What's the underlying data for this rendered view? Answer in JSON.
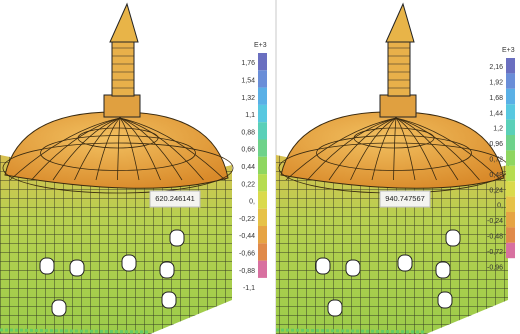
{
  "panels": [
    {
      "legend_unit": "E+3",
      "legend_labels": [
        "1,76",
        "1,54",
        "1,32",
        "1,1",
        "0,88",
        "0,66",
        "0,44",
        "0,22",
        "0,",
        "-0,22",
        "-0,44",
        "-0,66",
        "-0,88",
        "-1,1"
      ],
      "probe_value": "620.246141"
    },
    {
      "legend_unit": "E+3",
      "legend_labels": [
        "2,16",
        "1,92",
        "1,68",
        "1,44",
        "1,2",
        "0,96",
        "0,72",
        "0,48",
        "0,24",
        "0,",
        "-0,24",
        "-0,48",
        "-0,72",
        "-0,96"
      ],
      "probe_value": "940.747567"
    }
  ]
}
